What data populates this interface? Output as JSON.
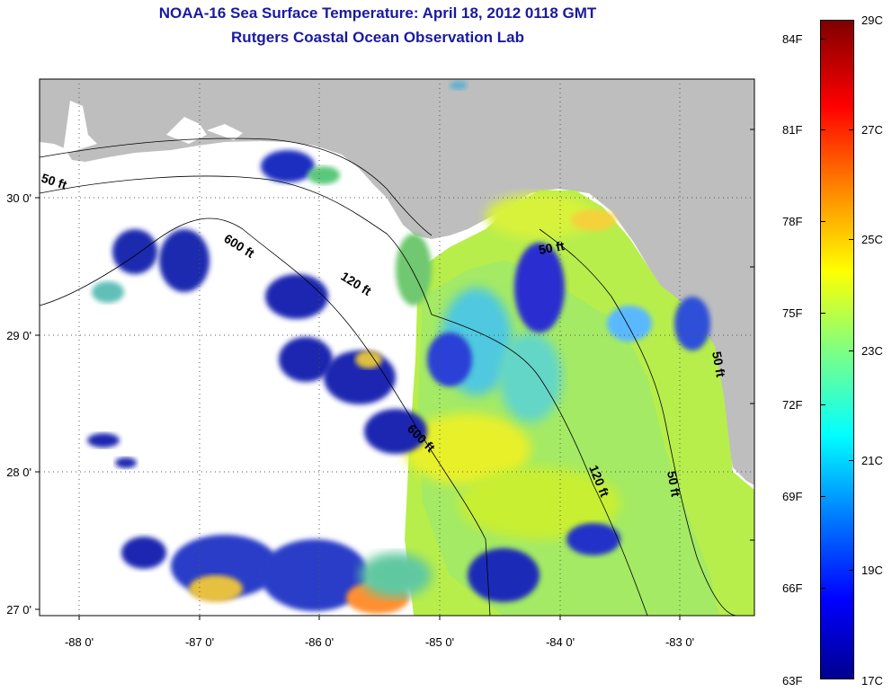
{
  "title": {
    "line1": "NOAA-16 Sea Surface Temperature:  April 18, 2012 0118 GMT",
    "line2": "Rutgers Coastal Ocean Observation Lab"
  },
  "map": {
    "lat_ticks": [
      "30 0'",
      "29 0'",
      "28 0'",
      "27 0'"
    ],
    "lon_ticks": [
      "-88 0'",
      "-87 0'",
      "-86 0'",
      "-85 0'",
      "-84 0'",
      "-83 0'"
    ],
    "isobath_labels": [
      "50 ft",
      "600 ft",
      "120 ft",
      "50 ft",
      "120 ft",
      "50 ft",
      "600 ft",
      "50 ft"
    ]
  },
  "colorbar": {
    "fahrenheit_labels": [
      "84F",
      "81F",
      "78F",
      "75F",
      "72F",
      "69F",
      "66F",
      "63F"
    ],
    "celsius_labels": [
      "29C",
      "27C",
      "25C",
      "23C",
      "21C",
      "19C",
      "17C"
    ],
    "colors": [
      "#7f0000",
      "#ff0000",
      "#ff8000",
      "#ffff00",
      "#80ff80",
      "#00ffff",
      "#0080ff",
      "#0000ff",
      "#00008f"
    ]
  },
  "palette": {
    "land": "#bebebe",
    "title_color": "#1a1aa0"
  }
}
